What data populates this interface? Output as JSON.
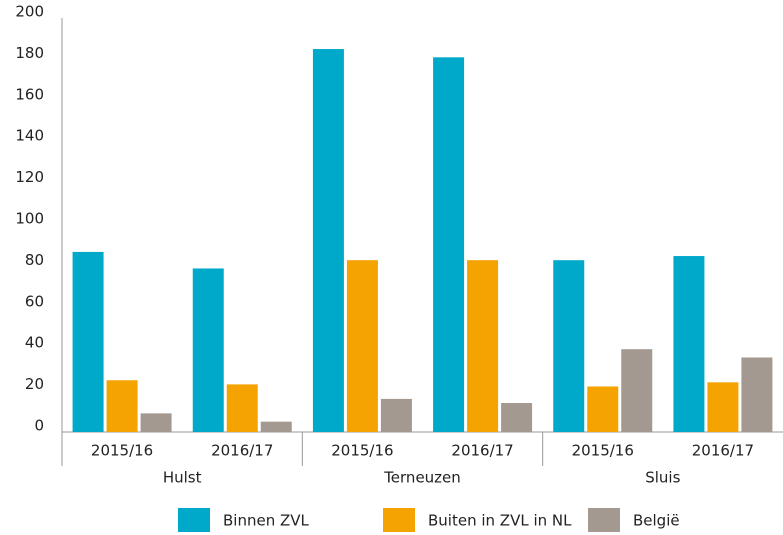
{
  "chart_data": {
    "type": "bar",
    "groups": [
      {
        "name": "Hulst",
        "categories": [
          "2015/16",
          "2016/17"
        ]
      },
      {
        "name": "Terneuzen",
        "categories": [
          "2015/16",
          "2016/17"
        ]
      },
      {
        "name": "Sluis",
        "categories": [
          "2015/16",
          "2016/17"
        ]
      }
    ],
    "series": [
      {
        "name": "Binnen ZVL",
        "color": "#00a9c9",
        "values": [
          87,
          79,
          185,
          181,
          83,
          85
        ]
      },
      {
        "name": "Buiten in ZVL in NL",
        "color": "#f5a300",
        "values": [
          25,
          23,
          83,
          83,
          22,
          24
        ]
      },
      {
        "name": "België",
        "color": "#a39990",
        "values": [
          9,
          5,
          16,
          14,
          40,
          36
        ]
      }
    ],
    "ylim": [
      0,
      200
    ],
    "yticks": [
      0,
      20,
      40,
      60,
      80,
      100,
      120,
      140,
      160,
      180,
      200
    ],
    "grid": false
  }
}
